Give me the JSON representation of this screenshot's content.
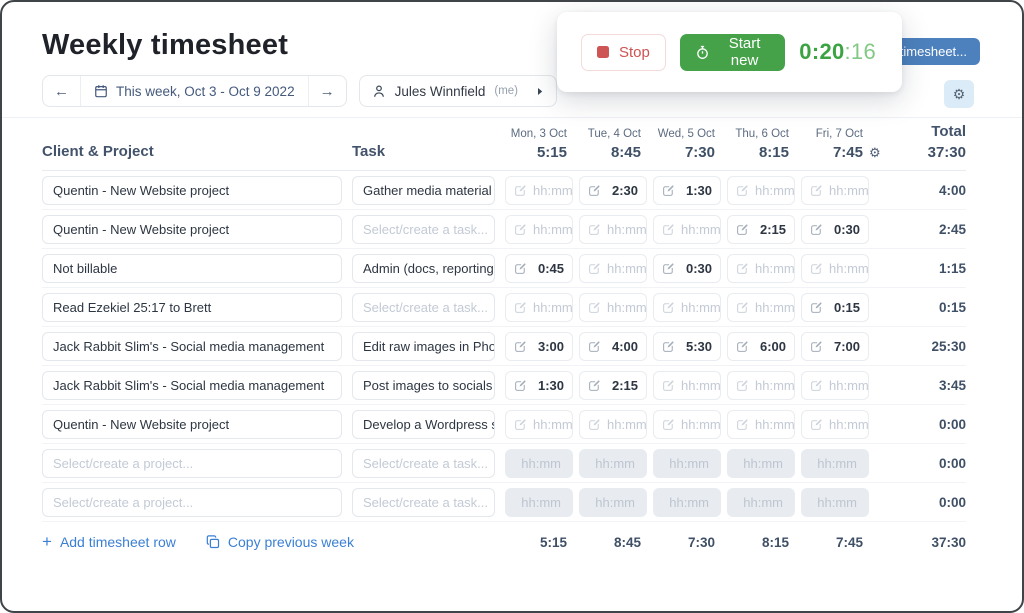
{
  "page_title": "Weekly timesheet",
  "toolbar": {
    "week_picker": {
      "prev": "←",
      "label": "This week, Oct 3 - Oct 9 2022",
      "next": "→"
    },
    "user_picker": {
      "name": "Jules Winnfield",
      "suffix": "(me)"
    }
  },
  "timer_card": {
    "stop_label": "Stop",
    "start_new_label": "Start new",
    "elapsed_main": "0:20",
    "elapsed_seconds": ":16"
  },
  "overlay": {
    "timesheet_button_label": "timesheet...",
    "settings_gear": "⚙"
  },
  "table": {
    "headers": {
      "project": "Client & Project",
      "task": "Task",
      "total": "Total",
      "gear": "⚙"
    },
    "days": [
      {
        "label": "Mon, 3 Oct",
        "total": "5:15"
      },
      {
        "label": "Tue, 4 Oct",
        "total": "8:45"
      },
      {
        "label": "Wed, 5 Oct",
        "total": "7:30"
      },
      {
        "label": "Thu, 6 Oct",
        "total": "8:15"
      },
      {
        "label": "Fri, 7 Oct",
        "total": "7:45"
      }
    ],
    "week_total": "37:30",
    "placeholders": {
      "project": "Select/create a project...",
      "task": "Select/create a task...",
      "time": "hh:mm"
    },
    "rows": [
      {
        "project": "Quentin - New Website project",
        "task": "Gather media material",
        "times": [
          "",
          "2:30",
          "1:30",
          "",
          ""
        ],
        "total": "4:00",
        "disabled": false
      },
      {
        "project": "Quentin - New Website project",
        "task": "",
        "times": [
          "",
          "",
          "",
          "2:15",
          "0:30"
        ],
        "total": "2:45",
        "disabled": false
      },
      {
        "project": "Not billable",
        "task": "Admin (docs, reporting)",
        "times": [
          "0:45",
          "",
          "0:30",
          "",
          ""
        ],
        "total": "1:15",
        "disabled": false
      },
      {
        "project": "Read Ezekiel 25:17 to Brett",
        "task": "",
        "times": [
          "",
          "",
          "",
          "",
          "0:15"
        ],
        "total": "0:15",
        "disabled": false
      },
      {
        "project": "Jack Rabbit Slim's - Social media management",
        "task": "Edit raw images in Phot...",
        "times": [
          "3:00",
          "4:00",
          "5:30",
          "6:00",
          "7:00"
        ],
        "total": "25:30",
        "disabled": false
      },
      {
        "project": "Jack Rabbit Slim's - Social media management",
        "task": "Post images to socials",
        "times": [
          "1:30",
          "2:15",
          "",
          "",
          ""
        ],
        "total": "3:45",
        "disabled": false
      },
      {
        "project": "Quentin - New Website project",
        "task": "Develop a Wordpress si...",
        "times": [
          "",
          "",
          "",
          "",
          ""
        ],
        "total": "0:00",
        "disabled": false
      },
      {
        "project": "",
        "task": "",
        "times": [
          "",
          "",
          "",
          "",
          ""
        ],
        "total": "0:00",
        "disabled": true
      },
      {
        "project": "",
        "task": "",
        "times": [
          "",
          "",
          "",
          "",
          ""
        ],
        "total": "0:00",
        "disabled": true
      }
    ],
    "footer": {
      "add_row": "Add timesheet row",
      "copy_week": "Copy previous week",
      "day_totals": [
        "5:15",
        "8:45",
        "7:30",
        "8:15",
        "7:45"
      ],
      "week_total": "37:30"
    }
  },
  "colors": {
    "accent_blue": "#3a7fd5",
    "button_blue": "#4c81bd",
    "green": "#45a249",
    "timer_green": "#3ba342",
    "red": "#cd5555",
    "slate_header": "#42536b"
  }
}
